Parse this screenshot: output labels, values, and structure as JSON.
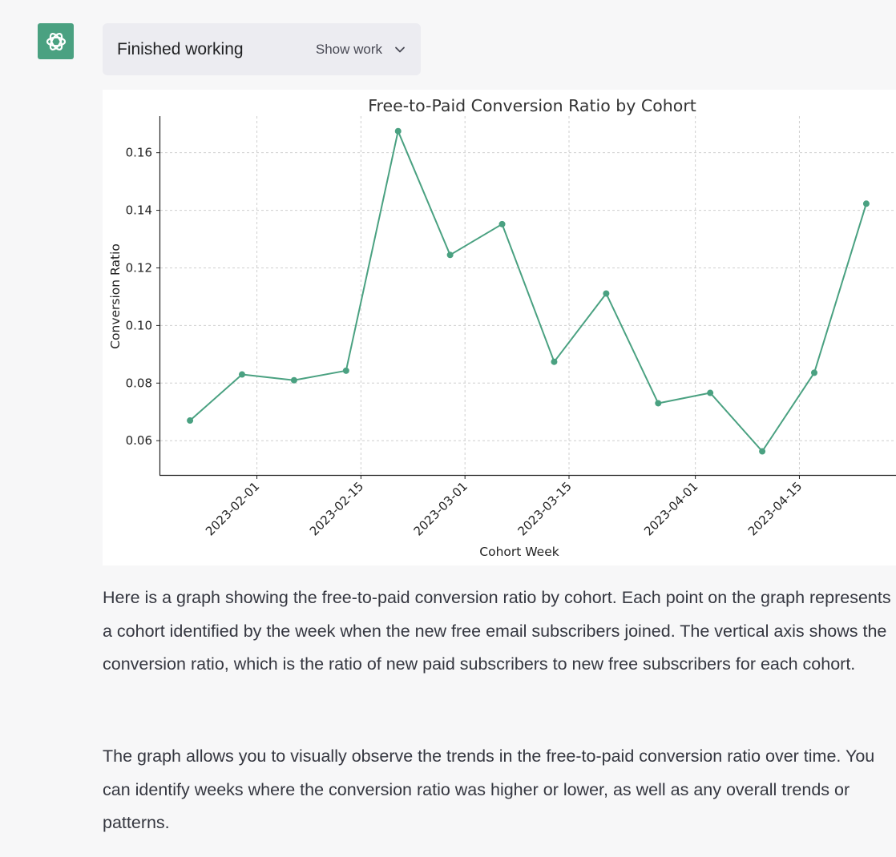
{
  "status": {
    "text": "Finished working",
    "show_work_label": "Show work"
  },
  "icons": {
    "avatar": "openai-logo-icon",
    "toggle": "chevron-down-icon"
  },
  "colors": {
    "avatar_bg": "#4aa181",
    "series": "#4aa181"
  },
  "chart_data": {
    "type": "line",
    "title": "Free-to-Paid Conversion Ratio by Cohort",
    "xlabel": "Cohort Week",
    "ylabel": "Conversion Ratio",
    "x": [
      "2023-01-23",
      "2023-01-30",
      "2023-02-06",
      "2023-02-13",
      "2023-02-20",
      "2023-02-27",
      "2023-03-06",
      "2023-03-13",
      "2023-03-20",
      "2023-03-27",
      "2023-04-03",
      "2023-04-10",
      "2023-04-17",
      "2023-04-24"
    ],
    "values": [
      0.067,
      0.083,
      0.081,
      0.0843,
      0.1675,
      0.1245,
      0.1352,
      0.0874,
      0.1111,
      0.073,
      0.0766,
      0.0563,
      0.0836,
      0.1423
    ],
    "xticks": [
      "2023-02-01",
      "2023-02-15",
      "2023-03-01",
      "2023-03-15",
      "2023-04-01",
      "2023-04-15"
    ],
    "yticks": [
      0.06,
      0.08,
      0.1,
      0.12,
      0.14,
      0.16
    ],
    "ytick_labels": [
      "0.06",
      "0.08",
      "0.10",
      "0.12",
      "0.14",
      "0.16"
    ],
    "ylim": [
      0.0481,
      0.1727
    ],
    "xlim": [
      "2023-01-19",
      "2023-04-28"
    ],
    "grid": true,
    "marker": "circle"
  },
  "message": {
    "paragraphs": [
      "Here is a graph showing the free-to-paid conversion ratio by cohort. Each point on the graph represents a cohort identified by the week when the new free email subscribers joined. The vertical axis shows the conversion ratio, which is the ratio of new paid subscribers to new free subscribers for each cohort.",
      "The graph allows you to visually observe the trends in the free-to-paid conversion ratio over time. You can identify weeks where the conversion ratio was higher or lower, as well as any overall trends or patterns."
    ]
  }
}
